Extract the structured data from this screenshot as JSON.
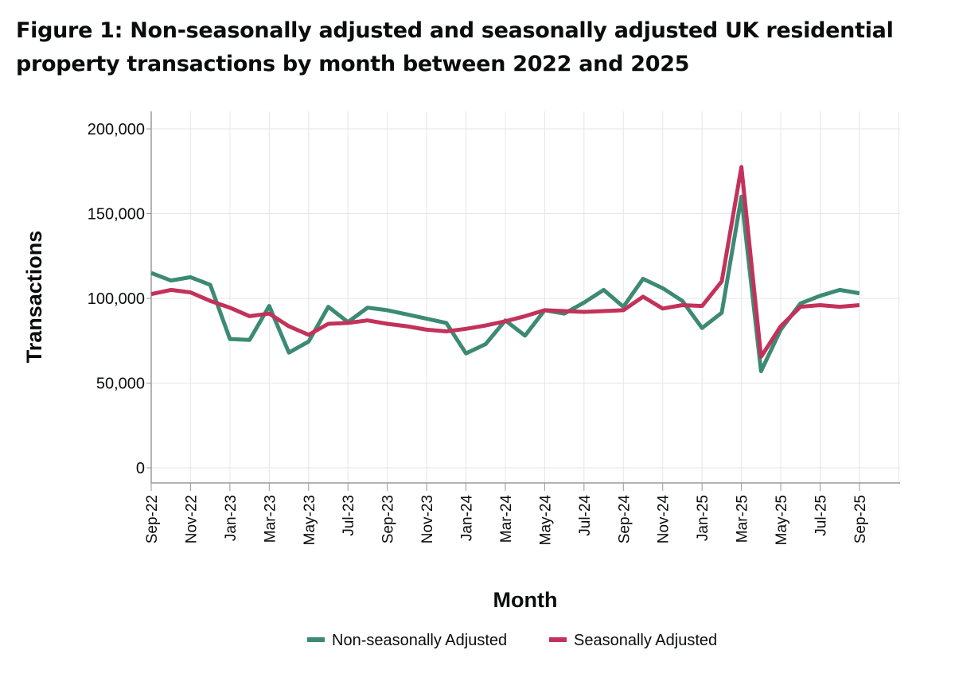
{
  "title": "Figure 1: Non-seasonally adjusted and seasonally adjusted UK residential property transactions by month between 2022 and 2025",
  "chart_data": {
    "type": "line",
    "xlabel": "Month",
    "ylabel": "Transactions",
    "ylim": [
      0,
      200000
    ],
    "y_ticks": [
      0,
      50000,
      100000,
      150000,
      200000
    ],
    "y_tick_labels": [
      "0",
      "50,000",
      "100,000",
      "150,000",
      "200,000"
    ],
    "x_tick_labels": [
      "Sep-22",
      "Nov-22",
      "Jan-23",
      "Mar-23",
      "May-23",
      "Jul-23",
      "Sep-23",
      "Nov-23",
      "Jan-24",
      "Mar-24",
      "May-24",
      "Jul-24",
      "Sep-24",
      "Nov-24",
      "Jan-25",
      "Mar-25",
      "May-25",
      "Jul-25",
      "Sep-25"
    ],
    "categories": [
      "Sep-22",
      "Oct-22",
      "Nov-22",
      "Dec-22",
      "Jan-23",
      "Feb-23",
      "Mar-23",
      "Apr-23",
      "May-23",
      "Jun-23",
      "Jul-23",
      "Aug-23",
      "Sep-23",
      "Oct-23",
      "Nov-23",
      "Dec-23",
      "Jan-24",
      "Feb-24",
      "Mar-24",
      "Apr-24",
      "May-24",
      "Jun-24",
      "Jul-24",
      "Aug-24",
      "Sep-24",
      "Oct-24",
      "Nov-24",
      "Dec-24",
      "Jan-25",
      "Feb-25",
      "Mar-25",
      "Apr-25",
      "May-25",
      "Jun-25",
      "Jul-25",
      "Aug-25",
      "Sep-25"
    ],
    "grid": true,
    "legend_position": "bottom",
    "series": [
      {
        "name": "Non-seasonally Adjusted",
        "color": "#3d8a74",
        "values": [
          115000,
          110500,
          112500,
          108000,
          76000,
          75500,
          95500,
          68000,
          74500,
          95000,
          86000,
          94500,
          93000,
          90500,
          88000,
          85500,
          67500,
          73000,
          87000,
          78000,
          93000,
          91000,
          97500,
          105000,
          95000,
          111500,
          106000,
          98500,
          82500,
          91500,
          160000,
          57000,
          81500,
          97000,
          101500,
          105000,
          103000
        ]
      },
      {
        "name": "Seasonally Adjusted",
        "color": "#c2325a",
        "values": [
          102500,
          105000,
          103500,
          98500,
          94500,
          89500,
          91000,
          83500,
          78500,
          85000,
          85500,
          87000,
          85000,
          83500,
          81500,
          80500,
          82000,
          84000,
          86500,
          89500,
          93000,
          92500,
          92000,
          92500,
          93000,
          101000,
          94000,
          96000,
          95500,
          110000,
          177500,
          65500,
          83500,
          95000,
          96000,
          95000,
          96000
        ]
      }
    ]
  }
}
